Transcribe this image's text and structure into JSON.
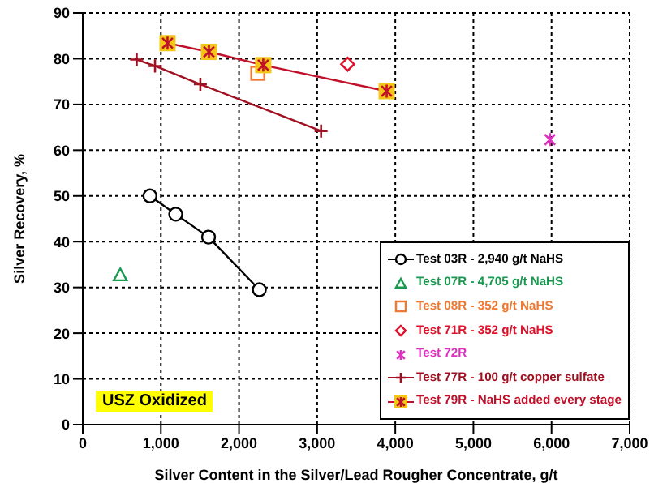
{
  "chart_data": {
    "type": "scatter",
    "xlabel": "Silver Content in the Silver/Lead Rougher Concentrate, g/t",
    "ylabel": "Silver Recovery, %",
    "xlim": [
      0,
      7000
    ],
    "xticks": [
      {
        "value": 0,
        "label": "0"
      },
      {
        "value": 1000,
        "label": "1,000"
      },
      {
        "value": 2000,
        "label": "2,000"
      },
      {
        "value": 3000,
        "label": "3,000"
      },
      {
        "value": 4000,
        "label": "4,000"
      },
      {
        "value": 5000,
        "label": "5,000"
      },
      {
        "value": 6000,
        "label": "6,000"
      },
      {
        "value": 7000,
        "label": "7,000"
      }
    ],
    "ylim": [
      0,
      90
    ],
    "yticks": [
      0,
      10,
      20,
      30,
      40,
      50,
      60,
      70,
      80,
      90
    ],
    "grid": true,
    "legend": "bottom right",
    "annotations": [
      "USZ Oxidized"
    ],
    "series": [
      {
        "name": "Test 03R - 2,940 g/t NaHS",
        "type": "line",
        "marker": "circle",
        "color": "#000000",
        "x": [
          860,
          1190,
          1610,
          2260
        ],
        "values": [
          50,
          46,
          41,
          29.5
        ]
      },
      {
        "name": "Test 07R - 4,705 g/t NaHS",
        "type": "scatter",
        "marker": "triangle",
        "color": "#1a9a50",
        "x": [
          480
        ],
        "values": [
          32.7
        ]
      },
      {
        "name": "Test 08R - 352 g/t NaHS",
        "type": "scatter",
        "marker": "square",
        "color": "#f07830",
        "x": [
          2240
        ],
        "values": [
          76.8
        ]
      },
      {
        "name": "Test 71R - 352 g/t NaHS",
        "type": "scatter",
        "marker": "diamond",
        "color": "#e0102a",
        "x": [
          3390
        ],
        "values": [
          78.8
        ]
      },
      {
        "name": "Test 72R",
        "type": "scatter",
        "marker": "cross",
        "color": "#e030c0",
        "x": [
          5980
        ],
        "values": [
          62.3
        ]
      },
      {
        "name": "Test 77R - 100 g/t copper sulfate",
        "type": "line",
        "marker": "cross",
        "color": "#a01020",
        "x": [
          690,
          925,
          1505,
          3050
        ],
        "values": [
          79.8,
          78.4,
          74.4,
          64.2
        ]
      },
      {
        "name": "Test 79R - NaHS added every stage",
        "type": "line",
        "marker": "square",
        "color": "#c0102a",
        "colors": [
          "#f5c518",
          "#f5c518",
          "#f5c518",
          "#f5c518"
        ],
        "x": [
          1085,
          1615,
          2310,
          3890
        ],
        "values": [
          83.4,
          81.5,
          78.6,
          72.9
        ]
      }
    ]
  }
}
